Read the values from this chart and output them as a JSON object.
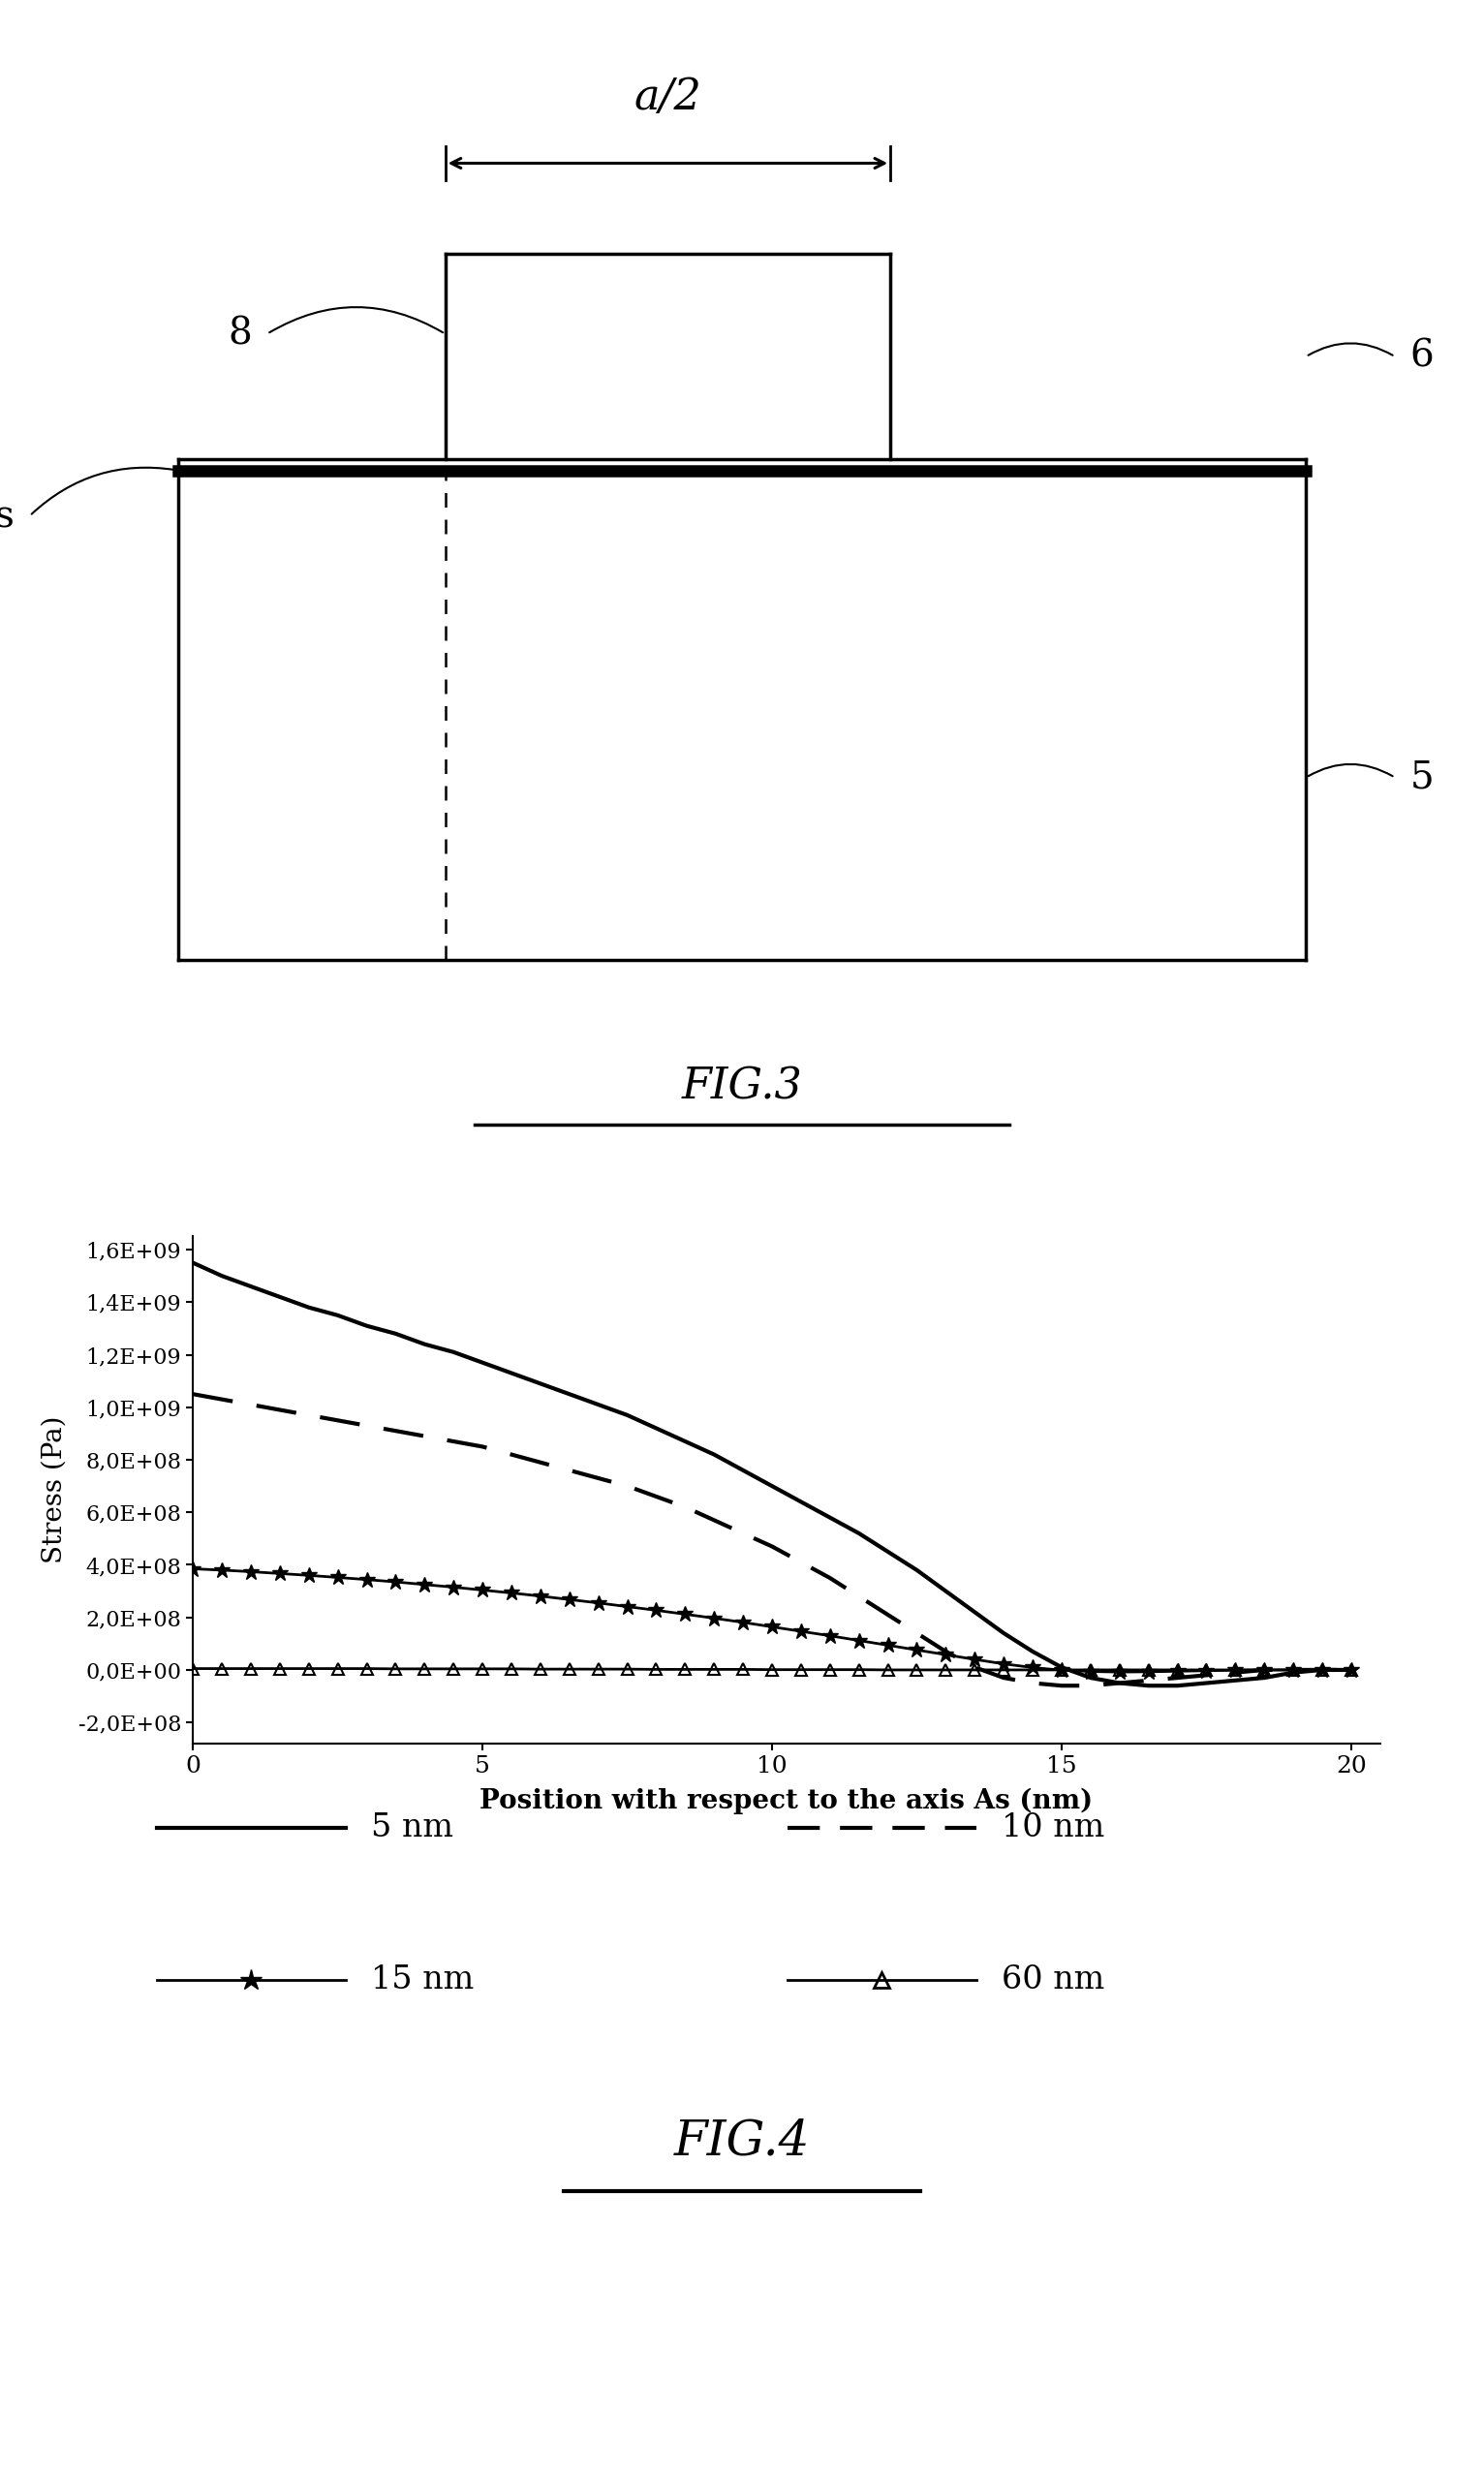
{
  "fig3": {
    "label_8": "8",
    "label_6": "6",
    "label_5": "5",
    "label_As": "As",
    "label_a2": "a/2",
    "title": "FIG.3"
  },
  "fig4": {
    "x_5nm": [
      0,
      0.5,
      1,
      1.5,
      2,
      2.5,
      3,
      3.5,
      4,
      4.5,
      5,
      5.5,
      6,
      6.5,
      7,
      7.5,
      8,
      8.5,
      9,
      9.5,
      10,
      10.5,
      11,
      11.5,
      12,
      12.5,
      13,
      13.5,
      14,
      14.5,
      15,
      15.5,
      16,
      16.5,
      17,
      17.5,
      18,
      18.5,
      19,
      19.5,
      20
    ],
    "y_5nm": [
      1550000000.0,
      1500000000.0,
      1460000000.0,
      1420000000.0,
      1380000000.0,
      1350000000.0,
      1310000000.0,
      1280000000.0,
      1240000000.0,
      1210000000.0,
      1170000000.0,
      1130000000.0,
      1090000000.0,
      1050000000.0,
      1010000000.0,
      970000000.0,
      920000000.0,
      870000000.0,
      820000000.0,
      760000000.0,
      700000000.0,
      640000000.0,
      580000000.0,
      520000000.0,
      450000000.0,
      380000000.0,
      300000000.0,
      220000000.0,
      140000000.0,
      70000000.0,
      10000000.0,
      -30000000.0,
      -50000000.0,
      -60000000.0,
      -60000000.0,
      -50000000.0,
      -40000000.0,
      -30000000.0,
      -10000000.0,
      0.0,
      0.0
    ],
    "x_10nm": [
      0,
      0.5,
      1,
      1.5,
      2,
      2.5,
      3,
      3.5,
      4,
      4.5,
      5,
      5.5,
      6,
      6.5,
      7,
      7.5,
      8,
      8.5,
      9,
      9.5,
      10,
      10.5,
      11,
      11.5,
      12,
      12.5,
      13,
      13.5,
      14,
      14.5,
      15,
      15.5,
      16,
      16.5,
      17,
      17.5,
      18,
      18.5,
      19,
      19.5,
      20
    ],
    "y_10nm": [
      1050000000.0,
      1030000000.0,
      1010000000.0,
      990000000.0,
      970000000.0,
      950000000.0,
      930000000.0,
      910000000.0,
      890000000.0,
      870000000.0,
      850000000.0,
      820000000.0,
      790000000.0,
      760000000.0,
      730000000.0,
      700000000.0,
      660000000.0,
      620000000.0,
      570000000.0,
      520000000.0,
      470000000.0,
      410000000.0,
      350000000.0,
      280000000.0,
      210000000.0,
      140000000.0,
      70000000.0,
      10000000.0,
      -30000000.0,
      -50000000.0,
      -60000000.0,
      -60000000.0,
      -50000000.0,
      -40000000.0,
      -30000000.0,
      -20000000.0,
      -10000000.0,
      0.0,
      0.0,
      0.0,
      0.0
    ],
    "x_15nm": [
      0,
      0.5,
      1,
      1.5,
      2,
      2.5,
      3,
      3.5,
      4,
      4.5,
      5,
      5.5,
      6,
      6.5,
      7,
      7.5,
      8,
      8.5,
      9,
      9.5,
      10,
      10.5,
      11,
      11.5,
      12,
      12.5,
      13,
      13.5,
      14,
      14.5,
      15,
      15.5,
      16,
      16.5,
      17,
      17.5,
      18,
      18.5,
      19,
      19.5,
      20
    ],
    "y_15nm": [
      385000000.0,
      380000000.0,
      374000000.0,
      367000000.0,
      360000000.0,
      352000000.0,
      344000000.0,
      335000000.0,
      325000000.0,
      315000000.0,
      304000000.0,
      293000000.0,
      281000000.0,
      268000000.0,
      255000000.0,
      241000000.0,
      227000000.0,
      212000000.0,
      197000000.0,
      181000000.0,
      164000000.0,
      147000000.0,
      130000000.0,
      112000000.0,
      94000000.0,
      76000000.0,
      58000000.0,
      40000000.0,
      23000000.0,
      9000000.0,
      -1000000.0,
      -6000000.0,
      -8000000.0,
      -7000000.0,
      -5000000.0,
      -3000000.0,
      -1000000.0,
      0.0,
      0.0,
      0.0,
      0.0
    ],
    "x_60nm": [
      0,
      0.5,
      1,
      1.5,
      2,
      2.5,
      3,
      3.5,
      4,
      4.5,
      5,
      5.5,
      6,
      6.5,
      7,
      7.5,
      8,
      8.5,
      9,
      9.5,
      10,
      10.5,
      11,
      11.5,
      12,
      12.5,
      13,
      13.5,
      14,
      14.5,
      15,
      15.5,
      16,
      16.5,
      17,
      17.5,
      18,
      18.5,
      19,
      19.5,
      20
    ],
    "y_60nm": [
      5000000.0,
      5000000.0,
      5000000.0,
      5000000.0,
      5000000.0,
      5000000.0,
      5000000.0,
      4000000.0,
      4000000.0,
      4000000.0,
      4000000.0,
      4000000.0,
      3000000.0,
      3000000.0,
      3000000.0,
      3000000.0,
      2000000.0,
      2000000.0,
      2000000.0,
      2000000.0,
      1000000.0,
      1000000.0,
      1000000.0,
      1000000.0,
      0,
      0,
      0,
      0,
      0,
      0,
      0,
      0,
      0,
      0,
      0,
      0,
      0,
      0,
      0,
      0,
      0
    ],
    "xlabel": "Position with respect to the axis As (nm)",
    "ylabel": "Stress (Pa)",
    "yticks": [
      -200000000.0,
      0.0,
      200000000.0,
      400000000.0,
      600000000.0,
      800000000.0,
      1000000000.0,
      1200000000.0,
      1400000000.0,
      1600000000.0
    ],
    "ytick_labels": [
      "-2,0E+08",
      "0,0E+00",
      "2,0E+08",
      "4,0E+08",
      "6,0E+08",
      "8,0E+08",
      "1,0E+09",
      "1,2E+09",
      "1,4E+09",
      "1,6E+09"
    ],
    "xticks": [
      0,
      5,
      10,
      15,
      20
    ],
    "xlim": [
      0,
      20.5
    ],
    "ylim": [
      -280000000.0,
      1650000000.0
    ],
    "title": "FIG.4"
  }
}
